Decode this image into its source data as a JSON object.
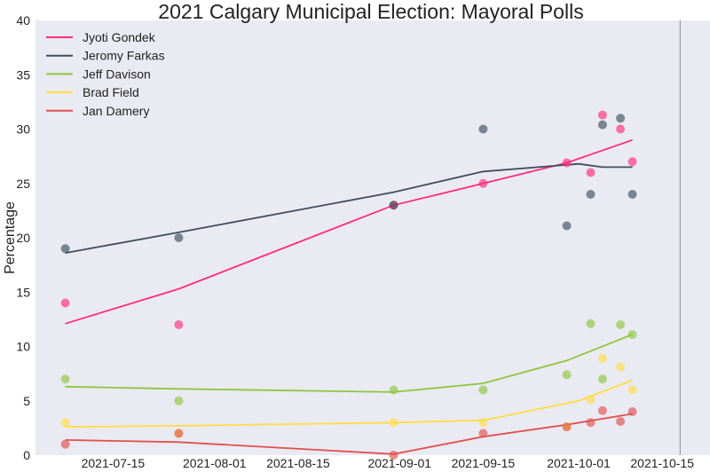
{
  "chart_data": {
    "type": "line",
    "title": "2021 Calgary Municipal Election: Mayoral Polls",
    "xlabel": "",
    "ylabel": "Percentage",
    "xlim": [
      "2021-07-02",
      "2021-10-23"
    ],
    "ylim": [
      0,
      40
    ],
    "yticks": [
      0,
      5,
      10,
      15,
      20,
      25,
      30,
      35,
      40
    ],
    "xticks": [
      "2021-07-15",
      "2021-08-01",
      "2021-08-15",
      "2021-09-01",
      "2021-09-15",
      "2021-10-01",
      "2021-10-15"
    ],
    "election_day_line": "2021-10-18",
    "background": "#eaeaf2",
    "grid": false,
    "legend_position": "top-left",
    "poll_dates": [
      "2021-07-07",
      "2021-07-26",
      "2021-08-31",
      "2021-09-15",
      "2021-09-29",
      "2021-10-03",
      "2021-10-05",
      "2021-10-08",
      "2021-10-10"
    ],
    "series": [
      {
        "name": "Jyoti Gondek",
        "color": "#ff2d7e",
        "polls": [
          14,
          12,
          23,
          25,
          26.9,
          26,
          31.3,
          30,
          27
        ],
        "trend": [
          [
            "2021-07-07",
            12.1
          ],
          [
            "2021-07-26",
            15.3
          ],
          [
            "2021-08-31",
            23
          ],
          [
            "2021-09-15",
            25
          ],
          [
            "2021-09-29",
            26.9
          ],
          [
            "2021-10-10",
            29
          ]
        ]
      },
      {
        "name": "Jeromy Farkas",
        "color": "#3d4f5f",
        "polls": [
          19,
          20,
          23,
          30,
          21.1,
          24,
          30.4,
          31,
          24
        ],
        "trend": [
          [
            "2021-07-07",
            18.6
          ],
          [
            "2021-07-26",
            20.5
          ],
          [
            "2021-08-31",
            24.2
          ],
          [
            "2021-09-15",
            26.1
          ],
          [
            "2021-10-01",
            26.8
          ],
          [
            "2021-10-05",
            26.5
          ],
          [
            "2021-10-10",
            26.5
          ]
        ]
      },
      {
        "name": "Jeff Davison",
        "color": "#8dc63f",
        "polls": [
          7,
          5,
          6,
          6,
          7.4,
          12.1,
          7,
          12,
          11.1
        ],
        "trend": [
          [
            "2021-07-07",
            6.3
          ],
          [
            "2021-07-26",
            6.1
          ],
          [
            "2021-08-31",
            5.8
          ],
          [
            "2021-09-15",
            6.6
          ],
          [
            "2021-09-29",
            8.7
          ],
          [
            "2021-10-10",
            11.1
          ]
        ]
      },
      {
        "name": "Brad Field",
        "color": "#ffdd44",
        "polls": [
          3,
          2,
          3,
          3,
          2.6,
          5.1,
          8.9,
          8.1,
          6
        ],
        "trend": [
          [
            "2021-07-07",
            2.6
          ],
          [
            "2021-07-26",
            2.7
          ],
          [
            "2021-08-31",
            3.0
          ],
          [
            "2021-09-15",
            3.2
          ],
          [
            "2021-10-01",
            5.0
          ],
          [
            "2021-10-10",
            6.9
          ]
        ]
      },
      {
        "name": "Jan Damery",
        "color": "#e05050",
        "polls": [
          1,
          2,
          0,
          2,
          2.6,
          3,
          4.1,
          3.1,
          4
        ],
        "trend": [
          [
            "2021-07-07",
            1.4
          ],
          [
            "2021-07-26",
            1.2
          ],
          [
            "2021-08-31",
            0.1
          ],
          [
            "2021-09-15",
            1.7
          ],
          [
            "2021-09-29",
            2.8
          ],
          [
            "2021-10-10",
            3.8
          ]
        ]
      }
    ]
  }
}
